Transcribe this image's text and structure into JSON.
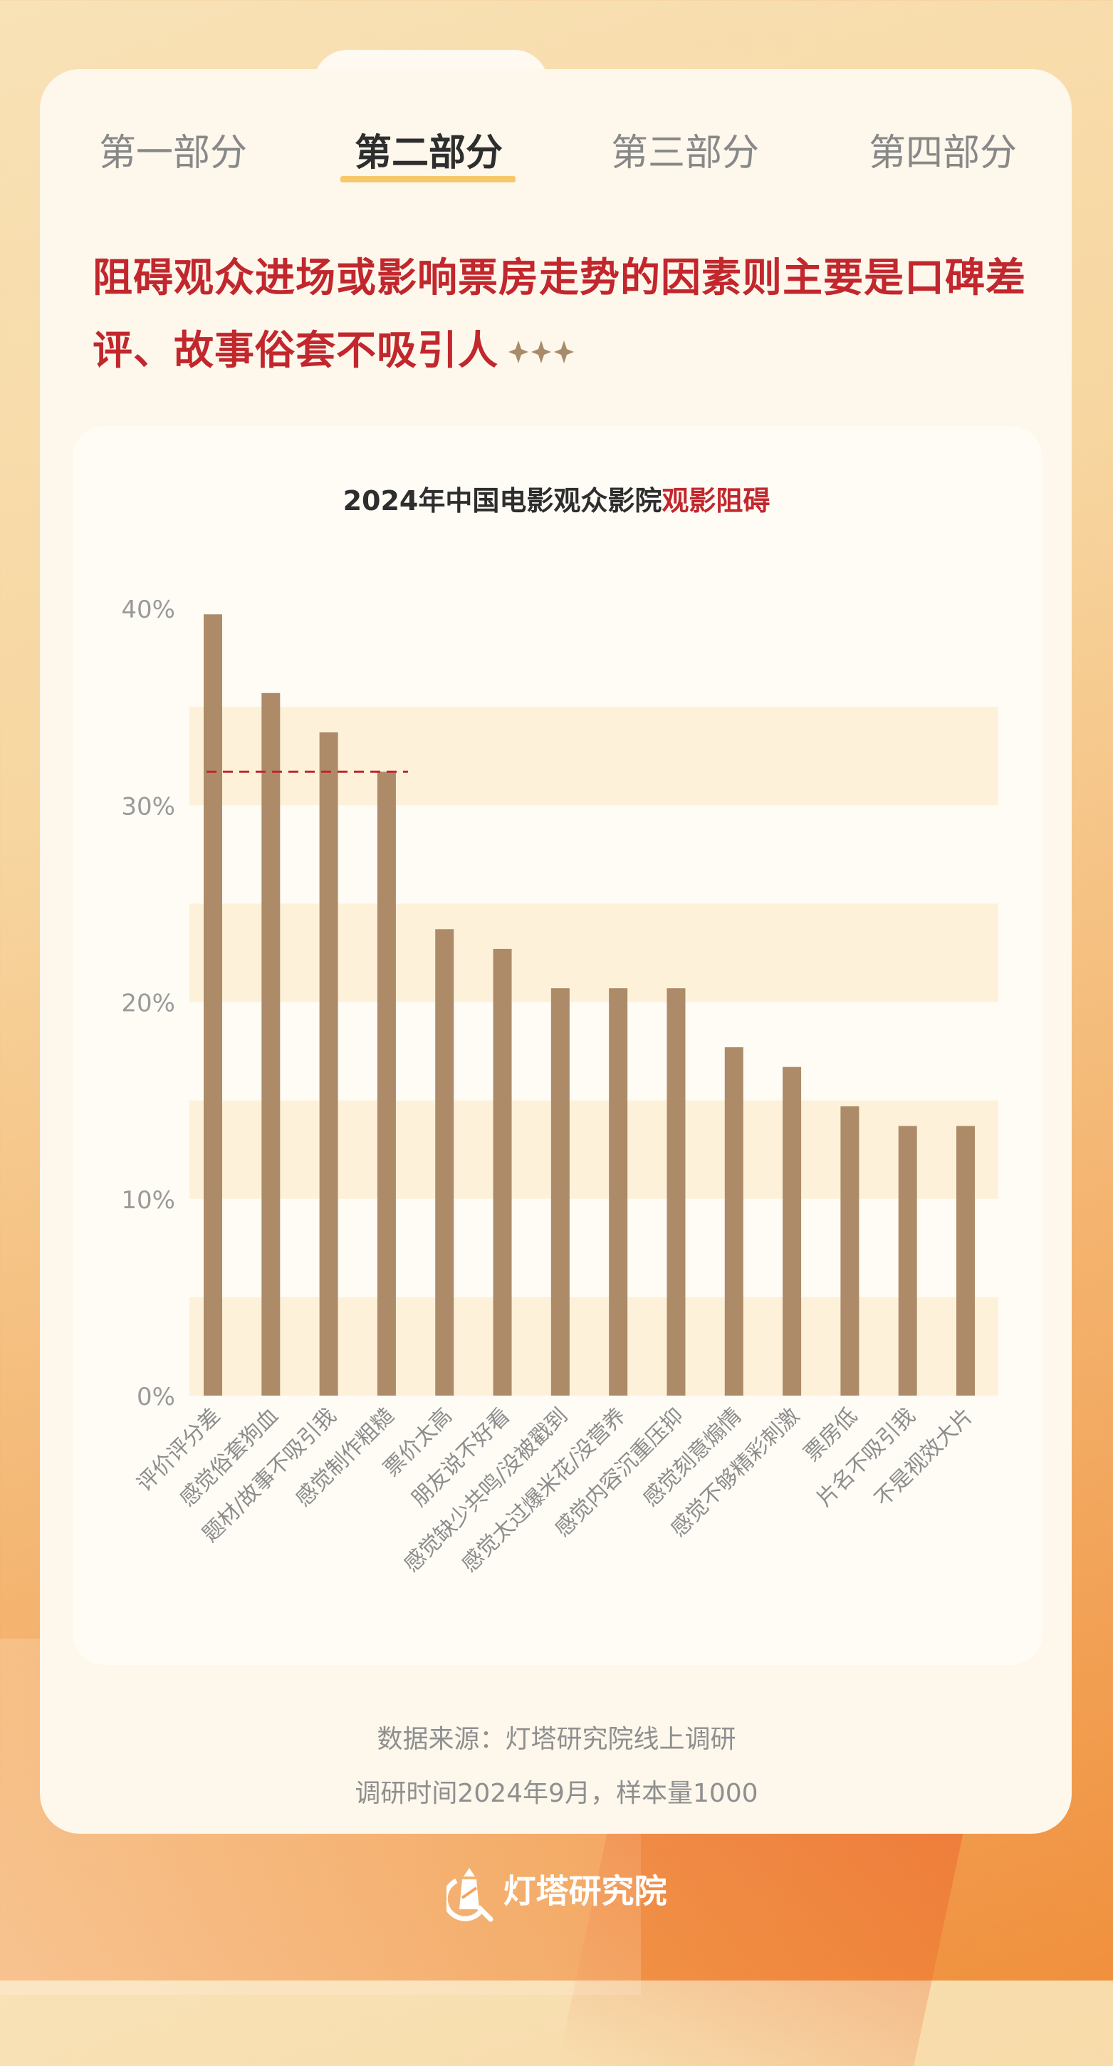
{
  "tabs": [
    {
      "label": "第一部分",
      "active": false
    },
    {
      "label": "第二部分",
      "active": true
    },
    {
      "label": "第三部分",
      "active": false
    },
    {
      "label": "第四部分",
      "active": false
    }
  ],
  "headline": "阻碍观众进场或影响票房走势的因素则主要是口碑差评、故事俗套不吸引人",
  "colors": {
    "accent": "#c1272d",
    "bar": "#ad8b68",
    "band": "#fdf1d9",
    "tab_underline": "#f7c86a"
  },
  "chart_data": {
    "type": "bar",
    "title_prefix": "2024年中国电影观众影院",
    "title_highlight": "观影阻碍",
    "categories": [
      "评价评分差",
      "感觉俗套狗血",
      "题材/故事不吸引我",
      "感觉制作粗糙",
      "票价太高",
      "朋友说不好看",
      "感觉缺少共鸣/没被戳到",
      "感觉太过爆米花/没营养",
      "感觉内容沉重压抑",
      "感觉刻意煽情",
      "感觉不够精彩刺激",
      "票房低",
      "片名不吸引我",
      "不是视效大片"
    ],
    "values": [
      39.7,
      35.7,
      33.7,
      31.7,
      23.7,
      22.7,
      20.7,
      20.7,
      20.7,
      17.7,
      16.7,
      14.7,
      13.7,
      13.7
    ],
    "ylim": [
      0,
      40
    ],
    "yticks": [
      "0%",
      "10%",
      "20%",
      "30%",
      "40%"
    ],
    "reference_line": 31.7,
    "grid": "alternating bands every 5%",
    "legend": "none"
  },
  "footer": {
    "source": "数据来源：灯塔研究院线上调研",
    "survey": "调研时间2024年9月，样本量1000"
  },
  "logo": {
    "text": "灯塔研究院"
  }
}
